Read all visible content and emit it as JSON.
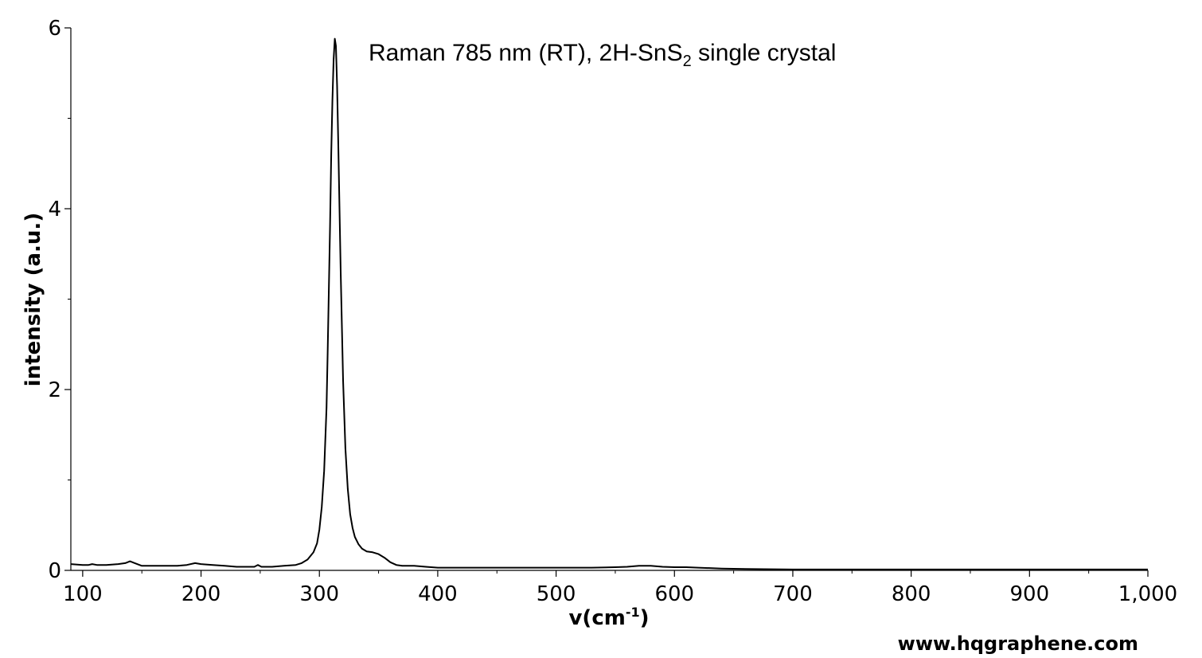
{
  "chart_data": {
    "type": "line",
    "title_parts": [
      "Raman 785 nm (RT), 2H-SnS",
      "2",
      " single crystal"
    ],
    "xlabel_parts": [
      "v(cm",
      "-1",
      ")"
    ],
    "ylabel": "intensity (a.u.)",
    "xlim": [
      90,
      1000
    ],
    "ylim": [
      0,
      6
    ],
    "x_ticks": [
      100,
      200,
      300,
      400,
      500,
      600,
      700,
      800,
      900,
      1000
    ],
    "x_tick_labels": [
      "100",
      "200",
      "300",
      "400",
      "500",
      "600",
      "700",
      "800",
      "900",
      "1,000"
    ],
    "y_ticks": [
      0,
      2,
      4,
      6
    ],
    "y_tick_labels": [
      "0",
      "2",
      "4",
      "6"
    ],
    "grid": false,
    "line_color": "#000000",
    "series": [
      {
        "x": [
          90,
          100,
          105,
          108,
          112,
          120,
          130,
          136,
          140,
          144,
          150,
          160,
          170,
          180,
          188,
          195,
          200,
          210,
          220,
          230,
          240,
          245,
          248,
          251,
          255,
          260,
          270,
          280,
          285,
          290,
          295,
          298,
          300,
          302,
          304,
          306,
          307,
          308,
          309,
          310,
          311,
          312,
          313,
          314,
          315,
          316,
          317,
          318,
          319,
          320,
          322,
          324,
          326,
          328,
          330,
          333,
          336,
          340,
          345,
          350,
          355,
          360,
          365,
          370,
          380,
          390,
          400,
          420,
          450,
          480,
          500,
          530,
          550,
          560,
          570,
          580,
          590,
          600,
          610,
          620,
          640,
          660,
          700,
          750,
          800,
          850,
          900,
          950,
          1000
        ],
        "y": [
          0.07,
          0.06,
          0.06,
          0.07,
          0.06,
          0.06,
          0.07,
          0.08,
          0.1,
          0.08,
          0.05,
          0.05,
          0.05,
          0.05,
          0.06,
          0.08,
          0.07,
          0.06,
          0.05,
          0.04,
          0.04,
          0.04,
          0.06,
          0.04,
          0.04,
          0.04,
          0.05,
          0.06,
          0.08,
          0.12,
          0.2,
          0.3,
          0.45,
          0.7,
          1.1,
          1.8,
          2.4,
          3.1,
          3.8,
          4.6,
          5.2,
          5.65,
          5.88,
          5.8,
          5.35,
          4.7,
          4.0,
          3.3,
          2.7,
          2.1,
          1.35,
          0.9,
          0.62,
          0.47,
          0.37,
          0.29,
          0.24,
          0.21,
          0.2,
          0.18,
          0.14,
          0.09,
          0.06,
          0.05,
          0.05,
          0.04,
          0.03,
          0.03,
          0.03,
          0.03,
          0.03,
          0.03,
          0.035,
          0.04,
          0.05,
          0.05,
          0.04,
          0.035,
          0.035,
          0.03,
          0.02,
          0.015,
          0.01,
          0.01,
          0.01,
          0.01,
          0.01,
          0.01,
          0.01
        ]
      }
    ]
  },
  "watermark": "www.hqgraphene.com"
}
